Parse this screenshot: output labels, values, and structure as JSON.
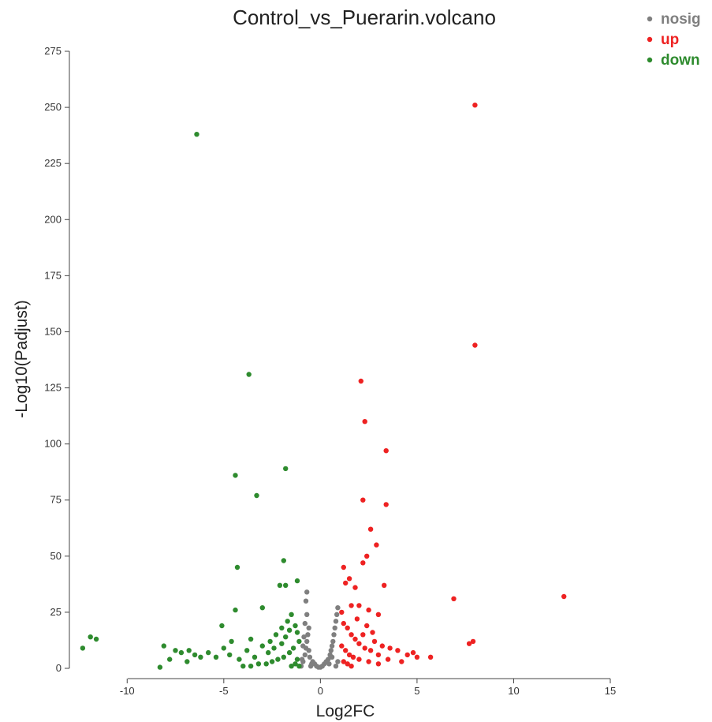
{
  "chart_data": {
    "type": "scatter",
    "title": "Control_vs_Puerarin.volcano",
    "xlabel": "Log2FC",
    "ylabel": "-Log10(Padjust)",
    "xlim": [
      -12.5,
      15
    ],
    "ylim": [
      0,
      275
    ],
    "x_ticks": [
      "-10",
      "-5",
      "0",
      "5",
      "10",
      "15"
    ],
    "y_ticks": [
      "0",
      "25",
      "50",
      "75",
      "100",
      "125",
      "150",
      "175",
      "200",
      "225",
      "250",
      "275"
    ],
    "grid": false,
    "legend_position": "top-right",
    "series": [
      {
        "name": "nosig",
        "color": "#7f7f7f",
        "points": [
          [
            -1.0,
            1
          ],
          [
            -0.9,
            3
          ],
          [
            -0.8,
            6
          ],
          [
            -0.75,
            9
          ],
          [
            -0.7,
            12
          ],
          [
            -0.65,
            15
          ],
          [
            -0.6,
            18
          ],
          [
            -0.9,
            10
          ],
          [
            -0.85,
            14
          ],
          [
            -0.8,
            20
          ],
          [
            -0.7,
            24
          ],
          [
            -0.95,
            4
          ],
          [
            -0.5,
            1
          ],
          [
            -0.4,
            3
          ],
          [
            -0.3,
            2
          ],
          [
            -0.2,
            1
          ],
          [
            -0.1,
            0.5
          ],
          [
            0.0,
            0.5
          ],
          [
            0.1,
            1
          ],
          [
            0.2,
            2
          ],
          [
            0.3,
            3
          ],
          [
            0.4,
            4
          ],
          [
            0.5,
            6
          ],
          [
            0.55,
            8
          ],
          [
            0.6,
            10
          ],
          [
            0.65,
            12
          ],
          [
            0.7,
            15
          ],
          [
            0.75,
            18
          ],
          [
            0.8,
            21
          ],
          [
            0.85,
            24
          ],
          [
            0.9,
            27
          ],
          [
            0.9,
            3
          ],
          [
            0.8,
            1
          ],
          [
            -0.6,
            8
          ],
          [
            -0.55,
            5
          ],
          [
            -0.45,
            2
          ],
          [
            0.45,
            2
          ],
          [
            0.6,
            5
          ],
          [
            -0.75,
            30
          ],
          [
            -0.7,
            34
          ]
        ]
      },
      {
        "name": "up",
        "color": "#ee2222",
        "points": [
          [
            8.0,
            251
          ],
          [
            8.0,
            144
          ],
          [
            2.1,
            128
          ],
          [
            2.3,
            110
          ],
          [
            3.4,
            97
          ],
          [
            2.2,
            75
          ],
          [
            3.4,
            73
          ],
          [
            2.6,
            62
          ],
          [
            2.9,
            55
          ],
          [
            2.4,
            50
          ],
          [
            2.2,
            47
          ],
          [
            1.2,
            45
          ],
          [
            12.6,
            32
          ],
          [
            6.9,
            31
          ],
          [
            3.3,
            37
          ],
          [
            1.3,
            38
          ],
          [
            1.5,
            40
          ],
          [
            1.8,
            36
          ],
          [
            2.0,
            28
          ],
          [
            2.5,
            26
          ],
          [
            3.0,
            24
          ],
          [
            7.7,
            11
          ],
          [
            7.9,
            12
          ],
          [
            5.7,
            5
          ],
          [
            4.0,
            8
          ],
          [
            4.5,
            6
          ],
          [
            5.0,
            5
          ],
          [
            1.2,
            20
          ],
          [
            1.4,
            18
          ],
          [
            1.6,
            15
          ],
          [
            1.8,
            13
          ],
          [
            2.0,
            11
          ],
          [
            2.3,
            9
          ],
          [
            2.6,
            8
          ],
          [
            3.0,
            6
          ],
          [
            3.5,
            4
          ],
          [
            4.2,
            3
          ],
          [
            1.1,
            10
          ],
          [
            1.3,
            8
          ],
          [
            1.5,
            6
          ],
          [
            1.7,
            5
          ],
          [
            2.0,
            4
          ],
          [
            2.5,
            3
          ],
          [
            3.0,
            2
          ],
          [
            1.2,
            3
          ],
          [
            1.4,
            2
          ],
          [
            1.6,
            1
          ],
          [
            2.2,
            15
          ],
          [
            2.8,
            12
          ],
          [
            3.2,
            10
          ],
          [
            1.9,
            22
          ],
          [
            2.4,
            19
          ],
          [
            1.1,
            25
          ],
          [
            1.6,
            28
          ],
          [
            2.7,
            16
          ],
          [
            3.6,
            9
          ],
          [
            4.8,
            7
          ]
        ]
      },
      {
        "name": "down",
        "color": "#2e8b2e",
        "points": [
          [
            -6.4,
            238
          ],
          [
            -3.7,
            131
          ],
          [
            -1.8,
            89
          ],
          [
            -4.4,
            86
          ],
          [
            -3.3,
            77
          ],
          [
            -1.9,
            48
          ],
          [
            -4.3,
            45
          ],
          [
            -1.2,
            39
          ],
          [
            -2.1,
            37
          ],
          [
            -1.8,
            37
          ],
          [
            -4.4,
            26
          ],
          [
            -3.0,
            27
          ],
          [
            -5.1,
            19
          ],
          [
            -12.3,
            9
          ],
          [
            -11.9,
            14
          ],
          [
            -11.6,
            13
          ],
          [
            -8.1,
            10
          ],
          [
            -7.5,
            8
          ],
          [
            -7.2,
            7
          ],
          [
            -6.8,
            8
          ],
          [
            -6.5,
            6
          ],
          [
            -6.2,
            5
          ],
          [
            -5.8,
            7
          ],
          [
            -5.4,
            5
          ],
          [
            -5.0,
            9
          ],
          [
            -4.7,
            6
          ],
          [
            -4.2,
            4
          ],
          [
            -3.8,
            8
          ],
          [
            -3.4,
            5
          ],
          [
            -3.0,
            10
          ],
          [
            -2.6,
            12
          ],
          [
            -2.3,
            15
          ],
          [
            -2.0,
            18
          ],
          [
            -1.7,
            21
          ],
          [
            -1.5,
            24
          ],
          [
            -1.3,
            19
          ],
          [
            -1.2,
            16
          ],
          [
            -1.1,
            12
          ],
          [
            -1.4,
            9
          ],
          [
            -1.6,
            7
          ],
          [
            -1.9,
            5
          ],
          [
            -2.2,
            4
          ],
          [
            -2.5,
            3
          ],
          [
            -2.8,
            2
          ],
          [
            -3.2,
            2
          ],
          [
            -3.6,
            1
          ],
          [
            -4.0,
            1
          ],
          [
            -1.2,
            4
          ],
          [
            -1.3,
            2
          ],
          [
            -1.5,
            1
          ],
          [
            -1.1,
            1
          ],
          [
            -2.4,
            9
          ],
          [
            -2.7,
            7
          ],
          [
            -2.0,
            11
          ],
          [
            -1.8,
            14
          ],
          [
            -1.6,
            17
          ],
          [
            -3.6,
            13
          ],
          [
            -4.6,
            12
          ],
          [
            -7.8,
            4
          ],
          [
            -6.9,
            3
          ],
          [
            -8.3,
            0.5
          ]
        ]
      }
    ]
  }
}
